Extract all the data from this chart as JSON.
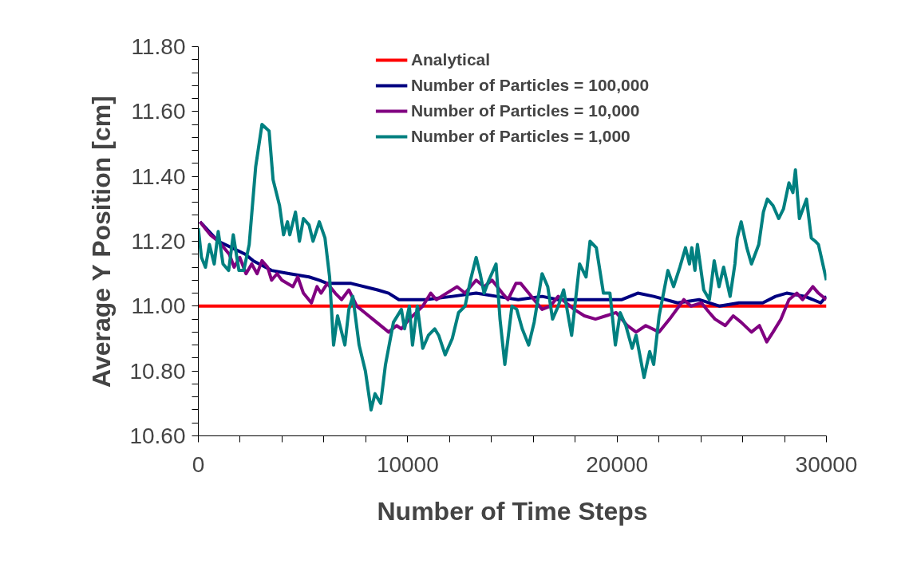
{
  "chart_data": {
    "type": "line",
    "xlabel": "Number of Time Steps",
    "ylabel": "Average Y Position [cm]",
    "xlim": [
      0,
      30000
    ],
    "ylim": [
      10.6,
      11.8
    ],
    "xticks": [
      0,
      {
        "value": 2000,
        "label": null
      },
      {
        "value": 4000,
        "label": null
      },
      {
        "value": 6000,
        "label": null
      },
      {
        "value": 8000,
        "label": null
      },
      10000,
      {
        "value": 12000,
        "label": null
      },
      {
        "value": 14000,
        "label": null
      },
      {
        "value": 16000,
        "label": null
      },
      {
        "value": 18000,
        "label": null
      },
      20000,
      {
        "value": 22000,
        "label": null
      },
      {
        "value": 24000,
        "label": null
      },
      {
        "value": 26000,
        "label": null
      },
      {
        "value": 28000,
        "label": null
      },
      30000
    ],
    "yticks": [
      {
        "value": 10.6,
        "label": "10.60"
      },
      {
        "value": 10.64,
        "label": null
      },
      {
        "value": 10.68,
        "label": null
      },
      {
        "value": 10.72,
        "label": null
      },
      {
        "value": 10.76,
        "label": null
      },
      {
        "value": 10.8,
        "label": "10.80"
      },
      {
        "value": 10.84,
        "label": null
      },
      {
        "value": 10.88,
        "label": null
      },
      {
        "value": 10.92,
        "label": null
      },
      {
        "value": 10.96,
        "label": null
      },
      {
        "value": 11.0,
        "label": "11.00"
      },
      {
        "value": 11.04,
        "label": null
      },
      {
        "value": 11.08,
        "label": null
      },
      {
        "value": 11.12,
        "label": null
      },
      {
        "value": 11.16,
        "label": null
      },
      {
        "value": 11.2,
        "label": "11.20"
      },
      {
        "value": 11.24,
        "label": null
      },
      {
        "value": 11.28,
        "label": null
      },
      {
        "value": 11.32,
        "label": null
      },
      {
        "value": 11.36,
        "label": null
      },
      {
        "value": 11.4,
        "label": "11.40"
      },
      {
        "value": 11.44,
        "label": null
      },
      {
        "value": 11.48,
        "label": null
      },
      {
        "value": 11.52,
        "label": null
      },
      {
        "value": 11.56,
        "label": null
      },
      {
        "value": 11.6,
        "label": "11.60"
      },
      {
        "value": 11.64,
        "label": null
      },
      {
        "value": 11.68,
        "label": null
      },
      {
        "value": 11.72,
        "label": null
      },
      {
        "value": 11.76,
        "label": null
      },
      {
        "value": 11.8,
        "label": "11.80"
      }
    ],
    "grid": false,
    "legend": "top",
    "marker": "none",
    "line_style": "solid",
    "series": [
      {
        "name": "Analytical",
        "color": "#ff0000",
        "x": [
          0,
          30000
        ],
        "values": [
          11.0,
          11.0
        ]
      },
      {
        "name": "Number of Particles = 100,000",
        "color": "#000080",
        "x": [
          80,
          950,
          1600,
          2240,
          2620,
          3500,
          4370,
          5290,
          5780,
          6160,
          7300,
          8560,
          9090,
          9580,
          9850,
          10230,
          10840,
          12130,
          13270,
          14260,
          15280,
          16420,
          17190,
          18440,
          19470,
          20230,
          20990,
          21750,
          22890,
          23920,
          24900,
          25820,
          26960,
          27570,
          28100,
          28970,
          29730,
          30000
        ],
        "values": [
          11.26,
          11.2,
          11.18,
          11.16,
          11.14,
          11.11,
          11.1,
          11.09,
          11.08,
          11.07,
          11.07,
          11.05,
          11.04,
          11.02,
          11.02,
          11.02,
          11.02,
          11.03,
          11.04,
          11.03,
          11.02,
          11.03,
          11.02,
          11.02,
          11.02,
          11.02,
          11.04,
          11.03,
          11.01,
          11.02,
          11.0,
          11.01,
          11.01,
          11.03,
          11.04,
          11.03,
          11.01,
          11.03
        ]
      },
      {
        "name": "Number of Particles = 10,000",
        "color": "#800080",
        "x": [
          80,
          570,
          950,
          1220,
          1480,
          1710,
          1980,
          2280,
          2550,
          2810,
          3040,
          3310,
          3500,
          3760,
          3990,
          4520,
          4750,
          5020,
          5400,
          5670,
          5860,
          6160,
          6540,
          6840,
          7190,
          7570,
          7950,
          8330,
          9090,
          9470,
          9700,
          10080,
          10720,
          11100,
          11370,
          11860,
          12360,
          12740,
          13270,
          13650,
          14030,
          14520,
          14790,
          15170,
          15400,
          15780,
          16160,
          16420,
          16810,
          17190,
          17570,
          17950,
          18440,
          18970,
          19470,
          19960,
          20490,
          20910,
          21370,
          22010,
          22510,
          23190,
          23530,
          24030,
          24410,
          24680,
          25170,
          25550,
          25930,
          26420,
          26800,
          27150,
          27450,
          27830,
          28210,
          28590,
          28860,
          29350,
          29620,
          30000
        ],
        "values": [
          11.26,
          11.22,
          11.2,
          11.18,
          11.16,
          11.12,
          11.15,
          11.1,
          11.13,
          11.1,
          11.14,
          11.12,
          11.08,
          11.1,
          11.08,
          11.06,
          11.09,
          11.04,
          11.01,
          11.06,
          11.04,
          11.07,
          11.04,
          11.02,
          11.05,
          11.0,
          10.98,
          10.96,
          10.92,
          10.94,
          10.93,
          10.96,
          11.0,
          11.04,
          11.02,
          11.04,
          11.06,
          11.04,
          11.08,
          11.06,
          11.08,
          11.04,
          11.02,
          11.07,
          11.07,
          11.04,
          11.01,
          10.99,
          11.0,
          11.03,
          11.01,
          10.99,
          10.97,
          10.96,
          10.97,
          10.98,
          10.94,
          10.92,
          10.94,
          10.92,
          10.96,
          11.02,
          11.0,
          11.01,
          10.98,
          10.96,
          10.94,
          10.97,
          10.95,
          10.92,
          10.94,
          10.89,
          10.92,
          10.96,
          11.02,
          11.04,
          11.02,
          11.06,
          11.04,
          11.02
        ]
      },
      {
        "name": "Number of Particles = 1,000",
        "color": "#008080",
        "x": [
          0,
          150,
          340,
          530,
          760,
          950,
          1180,
          1450,
          1670,
          1940,
          2170,
          2430,
          2740,
          3040,
          3380,
          3570,
          3880,
          4070,
          4260,
          4370,
          4640,
          4830,
          5020,
          5290,
          5480,
          5780,
          6050,
          6270,
          6460,
          6650,
          7000,
          7190,
          7380,
          7680,
          7980,
          8250,
          8440,
          8710,
          8940,
          9320,
          9700,
          9850,
          10080,
          10230,
          10460,
          10720,
          10990,
          11290,
          11480,
          11790,
          12130,
          12430,
          12740,
          13000,
          13270,
          13460,
          13650,
          13880,
          14220,
          14410,
          14640,
          14980,
          15210,
          15470,
          15780,
          16040,
          16420,
          16690,
          16920,
          17190,
          17450,
          17830,
          18210,
          18520,
          18710,
          19010,
          19350,
          19660,
          19920,
          20150,
          20420,
          20720,
          20910,
          21290,
          21560,
          21750,
          22010,
          22430,
          22700,
          23000,
          23270,
          23460,
          23570,
          23720,
          23840,
          24140,
          24410,
          24640,
          24870,
          25090,
          25400,
          25630,
          25740,
          25930,
          26200,
          26420,
          26770,
          26990,
          27180,
          27450,
          27720,
          27950,
          28210,
          28400,
          28520,
          28710,
          29050,
          29280,
          29470,
          29620,
          30000
        ],
        "values": [
          11.24,
          11.15,
          11.12,
          11.19,
          11.13,
          11.23,
          11.13,
          11.11,
          11.22,
          11.11,
          11.11,
          11.19,
          11.43,
          11.56,
          11.54,
          11.39,
          11.31,
          11.22,
          11.26,
          11.22,
          11.29,
          11.2,
          11.27,
          11.25,
          11.2,
          11.26,
          11.21,
          11.09,
          10.88,
          10.97,
          10.88,
          10.99,
          11.03,
          10.88,
          10.8,
          10.68,
          10.73,
          10.7,
          10.82,
          10.95,
          10.99,
          10.93,
          11.0,
          10.88,
          11.0,
          10.87,
          10.91,
          10.93,
          10.91,
          10.85,
          10.9,
          10.98,
          11.0,
          11.08,
          11.15,
          11.1,
          11.04,
          11.08,
          11.13,
          10.96,
          10.82,
          11.0,
          10.99,
          10.93,
          10.88,
          10.95,
          11.1,
          11.06,
          10.96,
          11.0,
          11.05,
          10.91,
          11.13,
          11.09,
          11.2,
          11.18,
          11.04,
          11.04,
          10.88,
          10.98,
          10.94,
          10.87,
          10.91,
          10.78,
          10.86,
          10.82,
          10.97,
          11.11,
          11.06,
          11.12,
          11.18,
          11.13,
          11.18,
          11.11,
          11.19,
          11.05,
          11.02,
          11.14,
          11.06,
          11.12,
          11.03,
          11.13,
          11.21,
          11.26,
          11.18,
          11.13,
          11.19,
          11.29,
          11.33,
          11.31,
          11.27,
          11.3,
          11.38,
          11.35,
          11.42,
          11.27,
          11.33,
          11.21,
          11.2,
          11.19,
          11.08
        ]
      }
    ]
  }
}
